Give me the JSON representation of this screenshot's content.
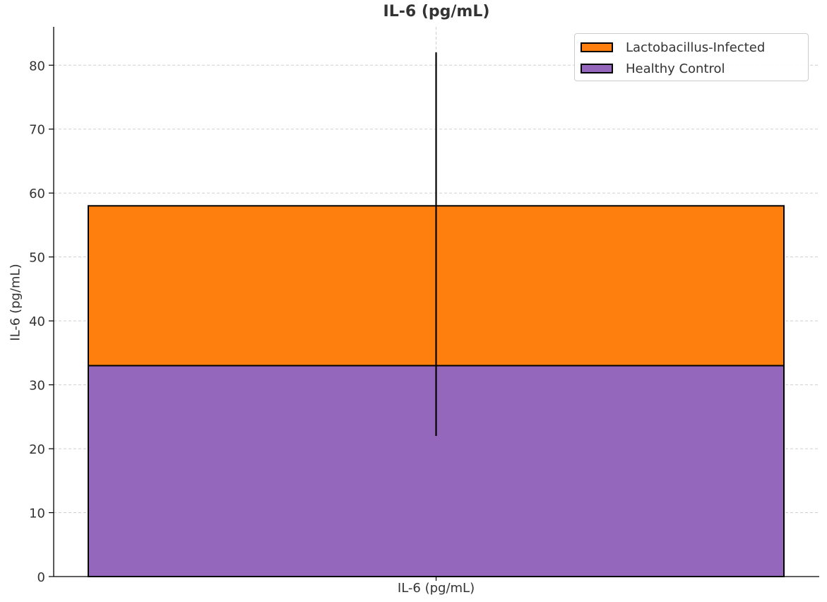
{
  "chart_data": {
    "type": "bar",
    "stacked": true,
    "title": "IL-6 (pg/mL)",
    "xlabel": "",
    "ylabel": "IL-6 (pg/mL)",
    "categories": [
      "IL-6 (pg/mL)"
    ],
    "ylim": [
      0,
      86
    ],
    "yticks": [
      0,
      10,
      20,
      30,
      40,
      50,
      60,
      70,
      80
    ],
    "grid": true,
    "legend_position": "top-right",
    "series": [
      {
        "name": "Healthy Control",
        "values": [
          33
        ],
        "color": "#9467bd"
      },
      {
        "name": "Lactobacillus-Infected",
        "values": [
          25
        ],
        "color": "#ff7f0e"
      }
    ],
    "error_bar": {
      "center": 52,
      "lower": 22,
      "upper": 82
    },
    "legend": [
      {
        "label": "Lactobacillus-Infected",
        "color": "#ff7f0e"
      },
      {
        "label": "Healthy Control",
        "color": "#9467bd"
      }
    ]
  }
}
